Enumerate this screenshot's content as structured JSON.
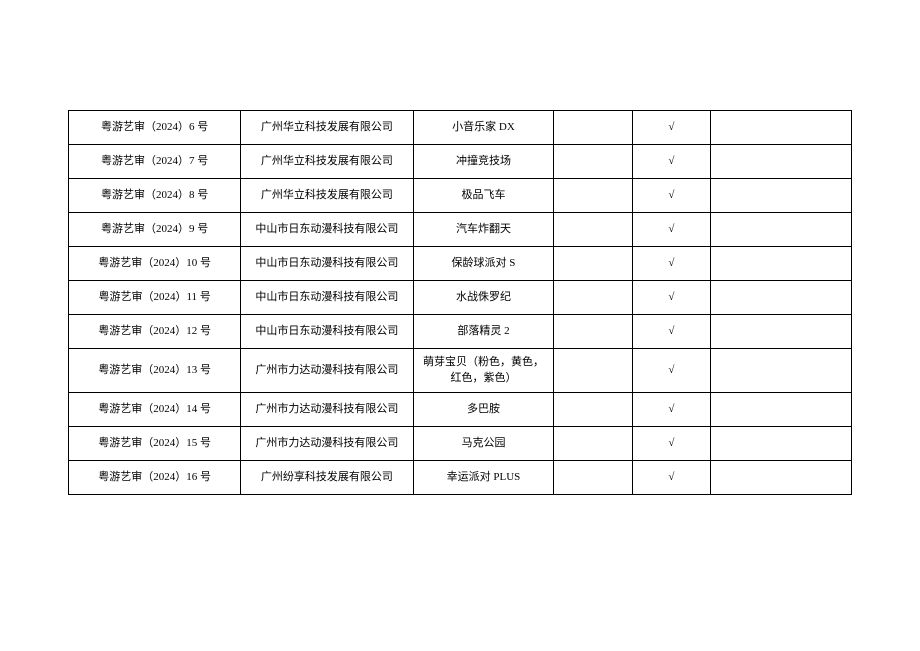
{
  "table": {
    "columns": [
      {
        "width": "22%"
      },
      {
        "width": "22%"
      },
      {
        "width": "18%"
      },
      {
        "width": "10%"
      },
      {
        "width": "10%"
      },
      {
        "width": "18%"
      }
    ],
    "rows": [
      {
        "c0": "粤游艺审（2024）6 号",
        "c1": "广州华立科技发展有限公司",
        "c2": "小音乐家 DX",
        "c3": "",
        "c4": "√",
        "c5": "",
        "tall": false
      },
      {
        "c0": "粤游艺审（2024）7 号",
        "c1": "广州华立科技发展有限公司",
        "c2": "冲撞竞技场",
        "c3": "",
        "c4": "√",
        "c5": "",
        "tall": false
      },
      {
        "c0": "粤游艺审（2024）8 号",
        "c1": "广州华立科技发展有限公司",
        "c2": "极品飞车",
        "c3": "",
        "c4": "√",
        "c5": "",
        "tall": false
      },
      {
        "c0": "粤游艺审（2024）9 号",
        "c1": "中山市日东动漫科技有限公司",
        "c2": "汽车炸翻天",
        "c3": "",
        "c4": "√",
        "c5": "",
        "tall": false
      },
      {
        "c0": "粤游艺审（2024）10 号",
        "c1": "中山市日东动漫科技有限公司",
        "c2": "保龄球派对 S",
        "c3": "",
        "c4": "√",
        "c5": "",
        "tall": false
      },
      {
        "c0": "粤游艺审（2024）11 号",
        "c1": "中山市日东动漫科技有限公司",
        "c2": "水战侏罗纪",
        "c3": "",
        "c4": "√",
        "c5": "",
        "tall": false
      },
      {
        "c0": "粤游艺审（2024）12 号",
        "c1": "中山市日东动漫科技有限公司",
        "c2": "部落精灵 2",
        "c3": "",
        "c4": "√",
        "c5": "",
        "tall": false
      },
      {
        "c0": "粤游艺审（2024）13 号",
        "c1": "广州市力达动漫科技有限公司",
        "c2": "萌芽宝贝（粉色，黄色，红色，紫色）",
        "c3": "",
        "c4": "√",
        "c5": "",
        "tall": true
      },
      {
        "c0": "粤游艺审（2024）14 号",
        "c1": "广州市力达动漫科技有限公司",
        "c2": "多巴胺",
        "c3": "",
        "c4": "√",
        "c5": "",
        "tall": false
      },
      {
        "c0": "粤游艺审（2024）15 号",
        "c1": "广州市力达动漫科技有限公司",
        "c2": "马克公园",
        "c3": "",
        "c4": "√",
        "c5": "",
        "tall": false
      },
      {
        "c0": "粤游艺审（2024）16 号",
        "c1": "广州纷享科技发展有限公司",
        "c2": "幸运派对 PLUS",
        "c3": "",
        "c4": "√",
        "c5": "",
        "tall": false
      }
    ],
    "border_color": "#000000",
    "background_color": "#ffffff",
    "text_color": "#000000",
    "font_size": 11
  }
}
